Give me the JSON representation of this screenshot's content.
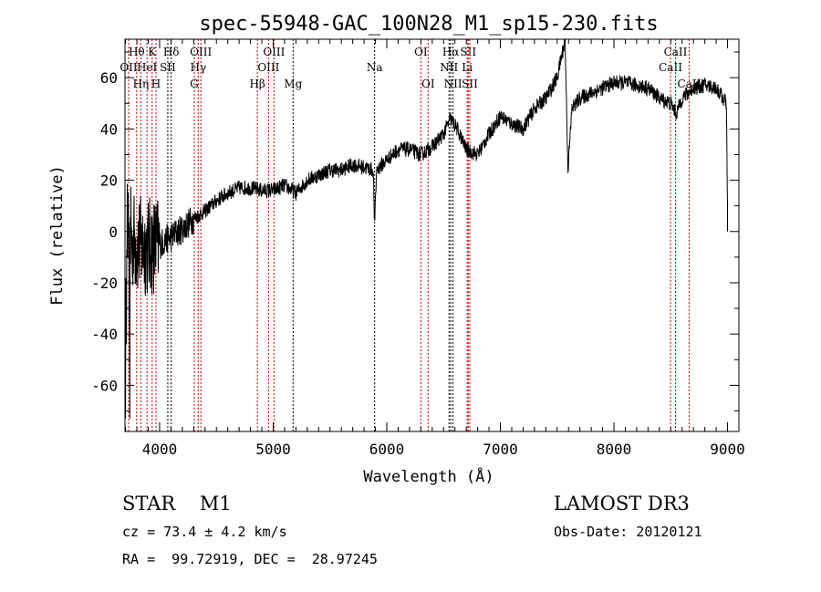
{
  "chart_data": {
    "type": "line",
    "title": "spec-55948-GAC_100N28_M1_sp15-230.fits",
    "xlabel": "Wavelength (Å)",
    "ylabel": "Flux (relative)",
    "xlim": [
      3695,
      9100
    ],
    "ylim": [
      -78,
      75
    ],
    "xticks": [
      4000,
      5000,
      6000,
      7000,
      8000,
      9000
    ],
    "yticks": [
      -60,
      -40,
      -20,
      0,
      20,
      40,
      60
    ],
    "series": [
      {
        "name": "spectrum",
        "color": "#000000",
        "points": [
          [
            3700,
            0
          ],
          [
            3800,
            -5
          ],
          [
            3900,
            -6
          ],
          [
            4000,
            -5
          ],
          [
            4100,
            -2
          ],
          [
            4200,
            1
          ],
          [
            4300,
            5
          ],
          [
            4400,
            8
          ],
          [
            4500,
            12
          ],
          [
            4600,
            15
          ],
          [
            4700,
            17
          ],
          [
            4800,
            17
          ],
          [
            4900,
            16
          ],
          [
            5000,
            16
          ],
          [
            5100,
            18
          ],
          [
            5200,
            15
          ],
          [
            5300,
            20
          ],
          [
            5400,
            22
          ],
          [
            5500,
            24
          ],
          [
            5600,
            24
          ],
          [
            5700,
            26
          ],
          [
            5800,
            25
          ],
          [
            5880,
            24
          ],
          [
            5893,
            2
          ],
          [
            5910,
            24
          ],
          [
            6000,
            28
          ],
          [
            6100,
            32
          ],
          [
            6200,
            32
          ],
          [
            6300,
            30
          ],
          [
            6400,
            33
          ],
          [
            6500,
            38
          ],
          [
            6560,
            44
          ],
          [
            6620,
            40
          ],
          [
            6700,
            32
          ],
          [
            6800,
            30
          ],
          [
            6900,
            38
          ],
          [
            7000,
            45
          ],
          [
            7100,
            42
          ],
          [
            7200,
            40
          ],
          [
            7300,
            48
          ],
          [
            7400,
            52
          ],
          [
            7500,
            60
          ],
          [
            7570,
            75
          ],
          [
            7595,
            24
          ],
          [
            7630,
            48
          ],
          [
            7700,
            52
          ],
          [
            7800,
            54
          ],
          [
            7900,
            56
          ],
          [
            8000,
            58
          ],
          [
            8100,
            58
          ],
          [
            8200,
            57
          ],
          [
            8300,
            56
          ],
          [
            8400,
            52
          ],
          [
            8500,
            50
          ],
          [
            8550,
            46
          ],
          [
            8600,
            52
          ],
          [
            8700,
            56
          ],
          [
            8800,
            57
          ],
          [
            8900,
            56
          ],
          [
            8990,
            50
          ],
          [
            9000,
            10
          ]
        ]
      }
    ],
    "lines": [
      {
        "label": "OII",
        "wl": 3727,
        "row": 2,
        "color": "#cc0000"
      },
      {
        "label": "Hθ",
        "wl": 3798,
        "row": 1,
        "color": "#cc0000"
      },
      {
        "label": "Hη",
        "wl": 3835,
        "row": 3,
        "color": "#cc0000"
      },
      {
        "label": "HeI",
        "wl": 3889,
        "row": 2,
        "color": "#cc0000"
      },
      {
        "label": "K",
        "wl": 3934,
        "row": 1,
        "color": "#cc0000"
      },
      {
        "label": "H",
        "wl": 3968,
        "row": 3,
        "color": "#cc0000"
      },
      {
        "label": "SII",
        "wl": 4072,
        "row": 2,
        "color": "#000000"
      },
      {
        "label": "Hδ",
        "wl": 4102,
        "row": 1,
        "color": "#000000"
      },
      {
        "label": "G",
        "wl": 4305,
        "row": 3,
        "color": "#cc0000"
      },
      {
        "label": "Hγ",
        "wl": 4340,
        "row": 2,
        "color": "#cc0000"
      },
      {
        "label": "OIII",
        "wl": 4363,
        "row": 1,
        "color": "#cc0000"
      },
      {
        "label": "Hβ",
        "wl": 4861,
        "row": 3,
        "color": "#cc0000"
      },
      {
        "label": "OIII",
        "wl": 4959,
        "row": 2,
        "color": "#cc0000"
      },
      {
        "label": "OIII",
        "wl": 5007,
        "row": 1,
        "color": "#cc0000"
      },
      {
        "label": "Mg",
        "wl": 5175,
        "row": 3,
        "color": "#000000"
      },
      {
        "label": "Na",
        "wl": 5893,
        "row": 2,
        "color": "#000000"
      },
      {
        "label": "OI",
        "wl": 6300,
        "row": 1,
        "color": "#cc0000"
      },
      {
        "label": "OI",
        "wl": 6364,
        "row": 3,
        "color": "#cc0000"
      },
      {
        "label": "NII",
        "wl": 6548,
        "row": 2,
        "color": "#000000"
      },
      {
        "label": "Hα",
        "wl": 6563,
        "row": 1,
        "color": "#000000"
      },
      {
        "label": "NII",
        "wl": 6583,
        "row": 3,
        "color": "#000000"
      },
      {
        "label": "Li",
        "wl": 6708,
        "row": 2,
        "color": "#cc0000"
      },
      {
        "label": "SII",
        "wl": 6717,
        "row": 1,
        "color": "#cc0000"
      },
      {
        "label": "SII",
        "wl": 6731,
        "row": 3,
        "color": "#cc0000"
      },
      {
        "label": "CaII",
        "wl": 8498,
        "row": 2,
        "color": "#cc0000"
      },
      {
        "label": "CaII",
        "wl": 8542,
        "row": 1,
        "color": "#cc0000"
      },
      {
        "label": "CaII",
        "wl": 8662,
        "row": 3,
        "color": "#cc0000"
      }
    ]
  },
  "info": {
    "class": "STAR    M1",
    "cz": "cz = 73.4 ± 4.2 km/s",
    "radec": "RA =  99.72919, DEC =  28.97245",
    "survey": "LAMOST DR3",
    "obsdate": "Obs-Date: 20120121"
  }
}
